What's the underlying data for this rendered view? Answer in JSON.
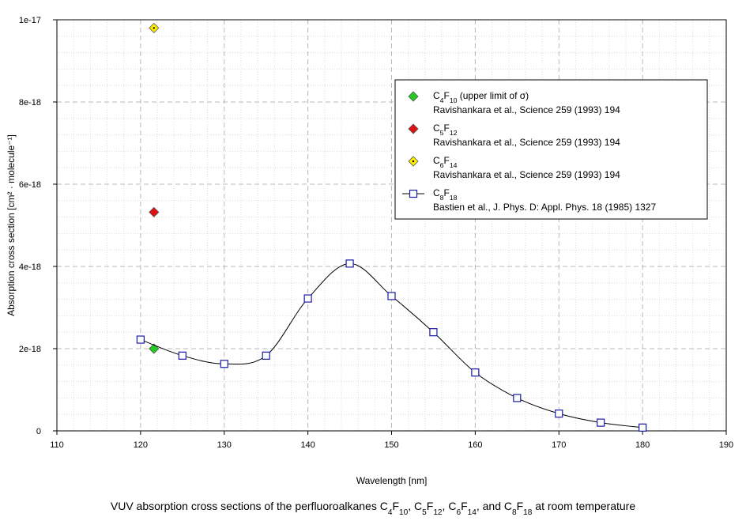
{
  "chart_data": {
    "type": "scatter",
    "xlabel": "Wavelength [nm]",
    "ylabel": "Absorption cross section [cm² · molecule⁻¹]",
    "xlim": [
      110,
      190
    ],
    "ylim": [
      0,
      1e-17
    ],
    "x_ticks": [
      "110",
      "120",
      "130",
      "140",
      "150",
      "160",
      "170",
      "180",
      "190"
    ],
    "y_ticks": [
      "0",
      "2e-18",
      "4e-18",
      "6e-18",
      "8e-18",
      "1e-17"
    ],
    "grid": true,
    "legend_position": "top-right",
    "series": [
      {
        "formula": [
          [
            "C",
            "4"
          ],
          [
            "F",
            "10"
          ]
        ],
        "note": "  (upper limit of σ)",
        "reference": "Ravishankara et al., Science 259 (1993) 194",
        "marker": "diamond",
        "color": "#22cc22",
        "points": [
          [
            121.6,
            2e-18
          ]
        ]
      },
      {
        "formula": [
          [
            "C",
            "5"
          ],
          [
            "F",
            "12"
          ]
        ],
        "note": "",
        "reference": "Ravishankara et al., Science 259 (1993) 194",
        "marker": "diamond",
        "color": "#dd1111",
        "points": [
          [
            121.6,
            5.32e-18
          ]
        ]
      },
      {
        "formula": [
          [
            "C",
            "6"
          ],
          [
            "F",
            "14"
          ]
        ],
        "note": "",
        "reference": "Ravishankara et al., Science 259 (1993) 194",
        "marker": "diamond-dot",
        "color": "#ffee00",
        "points": [
          [
            121.6,
            9.8e-18
          ]
        ]
      },
      {
        "formula": [
          [
            "C",
            "8"
          ],
          [
            "F",
            "18"
          ]
        ],
        "note": "",
        "reference": "Bastien et al., J. Phys. D: Appl. Phys. 18 (1985) 1327",
        "marker": "square",
        "color": "#1a1aa8",
        "line": true,
        "points": [
          [
            120,
            2.22e-18
          ],
          [
            125,
            1.83e-18
          ],
          [
            130,
            1.63e-18
          ],
          [
            135,
            1.83e-18
          ],
          [
            140,
            3.22e-18
          ],
          [
            145,
            4.07e-18
          ],
          [
            150,
            3.28e-18
          ],
          [
            155,
            2.4e-18
          ],
          [
            160,
            1.42e-18
          ],
          [
            165,
            8e-19
          ],
          [
            170,
            4.2e-19
          ],
          [
            175,
            2e-19
          ],
          [
            180,
            8e-20
          ]
        ]
      }
    ],
    "caption": [
      [
        "t",
        "VUV absorption cross sections of the perfluoroalkanes "
      ],
      [
        "t",
        "C"
      ],
      [
        "s",
        "4"
      ],
      [
        "t",
        "F"
      ],
      [
        "s",
        "10"
      ],
      [
        "t",
        ", "
      ],
      [
        "t",
        "C"
      ],
      [
        "s",
        "5"
      ],
      [
        "t",
        "F"
      ],
      [
        "s",
        "12"
      ],
      [
        "t",
        ", "
      ],
      [
        "t",
        "C"
      ],
      [
        "s",
        "6"
      ],
      [
        "t",
        "F"
      ],
      [
        "s",
        "14"
      ],
      [
        "t",
        ", and "
      ],
      [
        "t",
        "C"
      ],
      [
        "s",
        "8"
      ],
      [
        "t",
        "F"
      ],
      [
        "s",
        "18"
      ],
      [
        "t",
        " at room temperature"
      ]
    ]
  }
}
